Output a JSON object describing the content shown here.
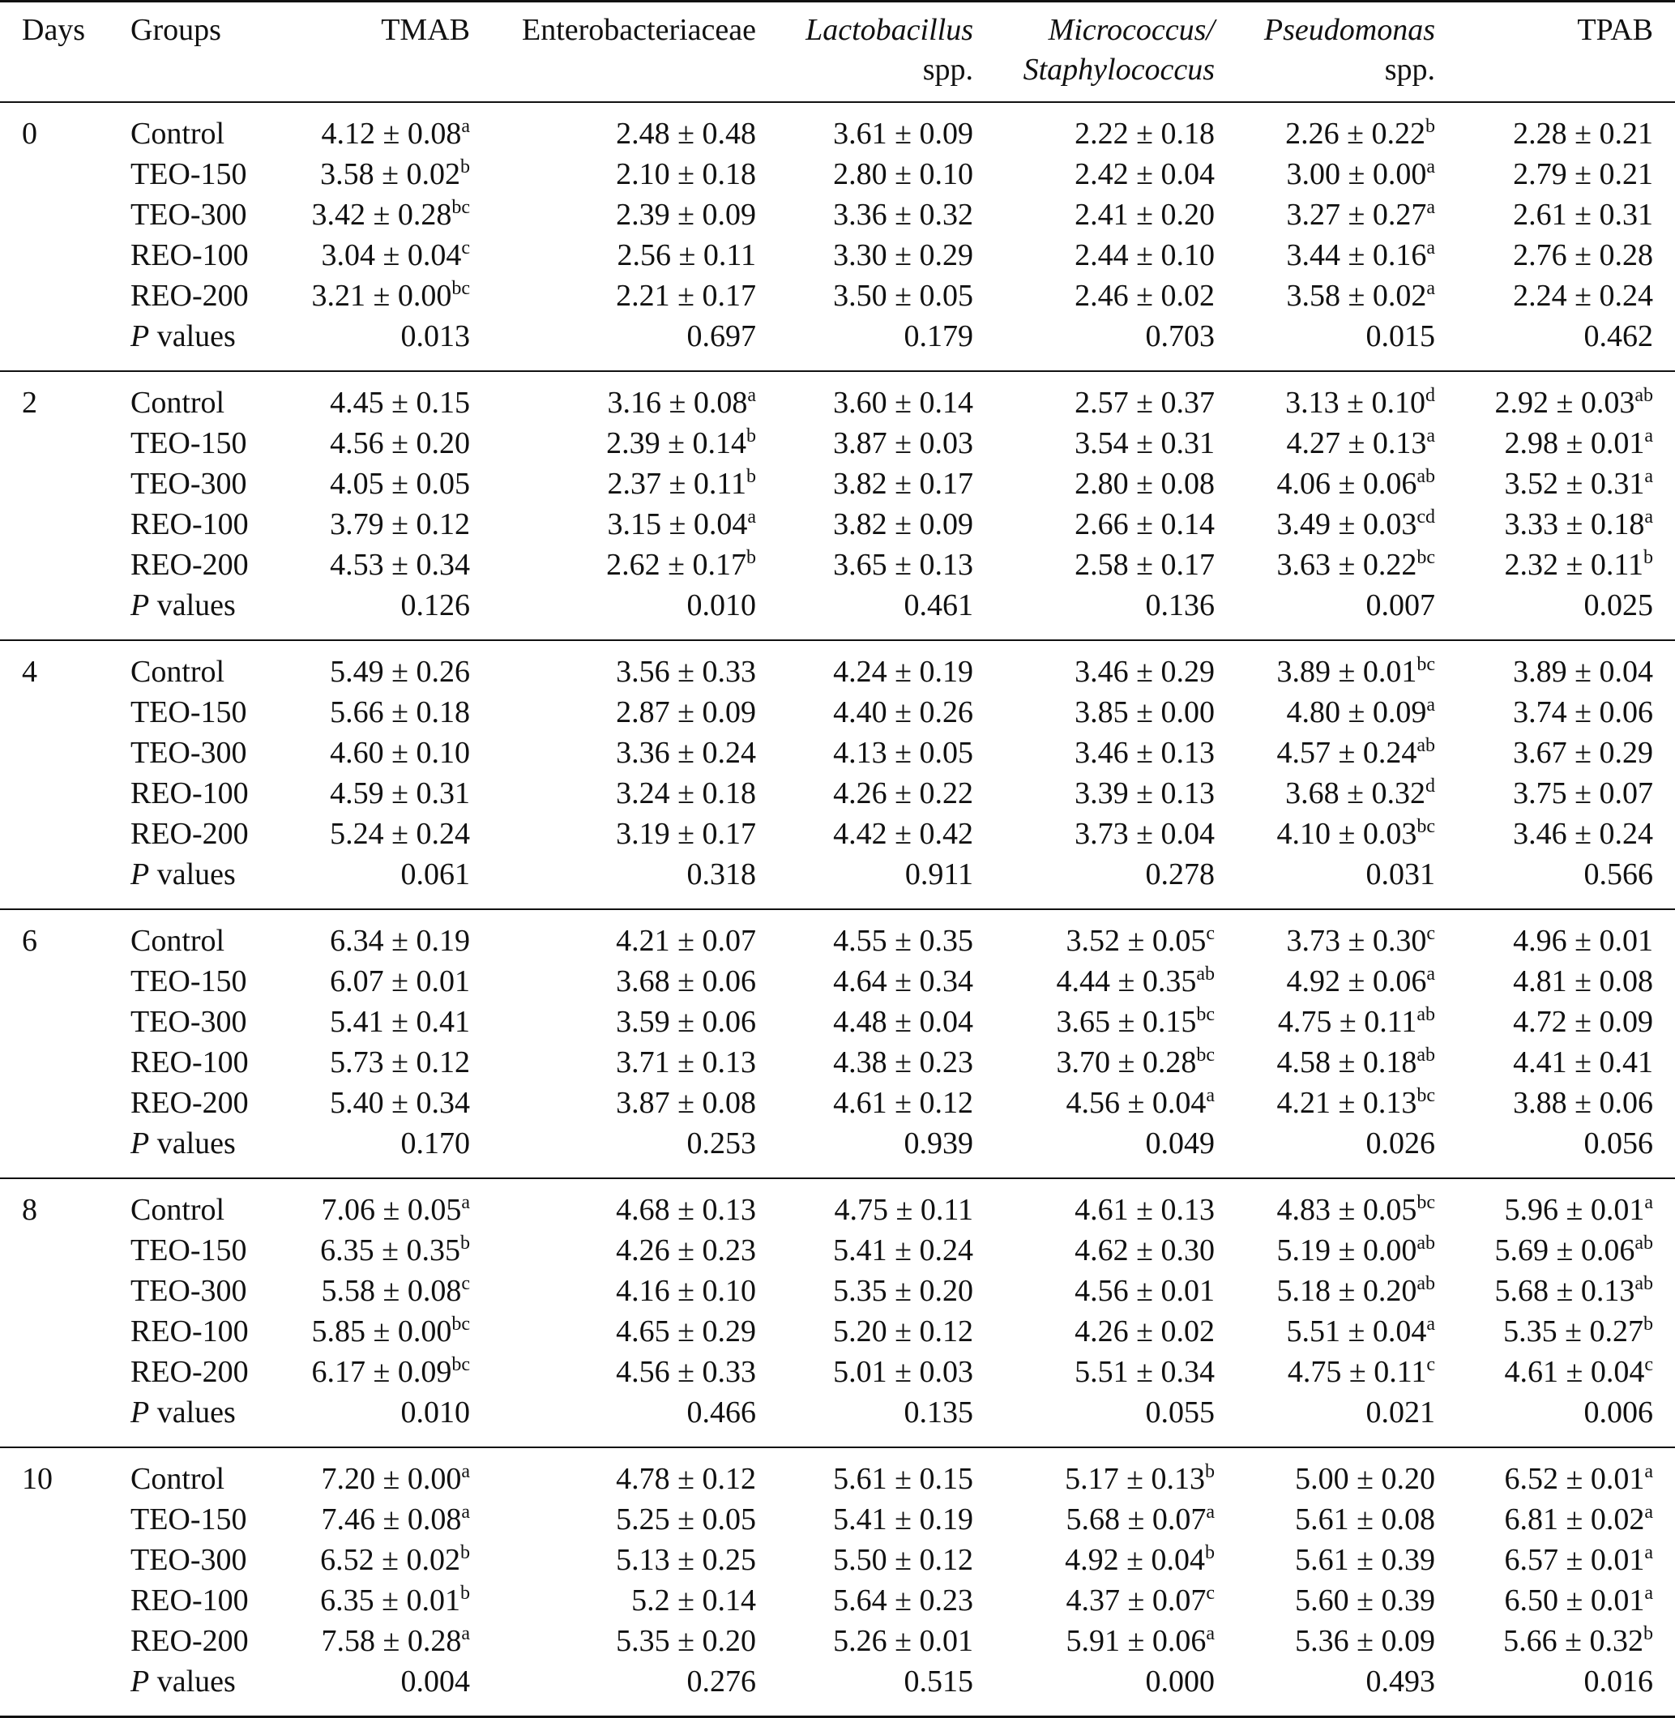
{
  "table": {
    "headers": {
      "days": "Days",
      "groups": "Groups",
      "tmab": "TMAB",
      "entero": "Enterobacteriaceae",
      "lacto_1": "Lactobacillus",
      "lacto_2": "spp.",
      "micro_1": "Micrococcus/",
      "micro_2": "Staphylococcus",
      "pseudo_1": "Pseudomonas",
      "pseudo_2": "spp.",
      "tpab": "TPAB"
    },
    "p_label_italic": "P",
    "p_label_rest": " values",
    "blocks": [
      {
        "day": "0",
        "rows": [
          {
            "group": "Control",
            "cells": [
              [
                "4.12 ± 0.08",
                "a"
              ],
              [
                "2.48 ± 0.48",
                ""
              ],
              [
                "3.61 ± 0.09",
                ""
              ],
              [
                "2.22 ± 0.18",
                ""
              ],
              [
                "2.26 ± 0.22",
                "b"
              ],
              [
                "2.28 ± 0.21",
                ""
              ]
            ]
          },
          {
            "group": "TEO-150",
            "cells": [
              [
                "3.58 ± 0.02",
                "b"
              ],
              [
                "2.10 ± 0.18",
                ""
              ],
              [
                "2.80 ± 0.10",
                ""
              ],
              [
                "2.42 ± 0.04",
                ""
              ],
              [
                "3.00 ± 0.00",
                "a"
              ],
              [
                "2.79 ± 0.21",
                ""
              ]
            ]
          },
          {
            "group": "TEO-300",
            "cells": [
              [
                "3.42 ± 0.28",
                "bc"
              ],
              [
                "2.39 ± 0.09",
                ""
              ],
              [
                "3.36 ± 0.32",
                ""
              ],
              [
                "2.41 ± 0.20",
                ""
              ],
              [
                "3.27 ± 0.27",
                "a"
              ],
              [
                "2.61 ± 0.31",
                ""
              ]
            ]
          },
          {
            "group": "REO-100",
            "cells": [
              [
                "3.04 ± 0.04",
                "c"
              ],
              [
                "2.56 ± 0.11",
                ""
              ],
              [
                "3.30 ± 0.29",
                ""
              ],
              [
                "2.44 ± 0.10",
                ""
              ],
              [
                "3.44 ± 0.16",
                "a"
              ],
              [
                "2.76 ± 0.28",
                ""
              ]
            ]
          },
          {
            "group": "REO-200",
            "cells": [
              [
                "3.21 ± 0.00",
                "bc"
              ],
              [
                "2.21 ± 0.17",
                ""
              ],
              [
                "3.50 ± 0.05",
                ""
              ],
              [
                "2.46 ± 0.02",
                ""
              ],
              [
                "3.58 ± 0.02",
                "a"
              ],
              [
                "2.24 ± 0.24",
                ""
              ]
            ]
          }
        ],
        "p_values": [
          "0.013",
          "0.697",
          "0.179",
          "0.703",
          "0.015",
          "0.462"
        ]
      },
      {
        "day": "2",
        "rows": [
          {
            "group": "Control",
            "cells": [
              [
                "4.45 ± 0.15",
                ""
              ],
              [
                "3.16 ± 0.08",
                "a"
              ],
              [
                "3.60 ± 0.14",
                ""
              ],
              [
                "2.57 ± 0.37",
                ""
              ],
              [
                "3.13 ± 0.10",
                "d"
              ],
              [
                "2.92 ± 0.03",
                "ab"
              ]
            ]
          },
          {
            "group": "TEO-150",
            "cells": [
              [
                "4.56 ± 0.20",
                ""
              ],
              [
                "2.39 ± 0.14",
                "b"
              ],
              [
                "3.87 ± 0.03",
                ""
              ],
              [
                "3.54 ± 0.31",
                ""
              ],
              [
                "4.27 ± 0.13",
                "a"
              ],
              [
                "2.98 ± 0.01",
                "a"
              ]
            ]
          },
          {
            "group": "TEO-300",
            "cells": [
              [
                "4.05 ± 0.05",
                ""
              ],
              [
                "2.37 ± 0.11",
                "b"
              ],
              [
                "3.82 ± 0.17",
                ""
              ],
              [
                "2.80 ± 0.08",
                ""
              ],
              [
                "4.06 ± 0.06",
                "ab"
              ],
              [
                "3.52 ± 0.31",
                "a"
              ]
            ]
          },
          {
            "group": "REO-100",
            "cells": [
              [
                "3.79 ± 0.12",
                ""
              ],
              [
                "3.15 ± 0.04",
                "a"
              ],
              [
                "3.82 ± 0.09",
                ""
              ],
              [
                "2.66 ± 0.14",
                ""
              ],
              [
                "3.49 ± 0.03",
                "cd"
              ],
              [
                "3.33 ± 0.18",
                "a"
              ]
            ]
          },
          {
            "group": "REO-200",
            "cells": [
              [
                "4.53 ± 0.34",
                ""
              ],
              [
                "2.62 ± 0.17",
                "b"
              ],
              [
                "3.65 ± 0.13",
                ""
              ],
              [
                "2.58 ± 0.17",
                ""
              ],
              [
                "3.63 ± 0.22",
                "bc"
              ],
              [
                "2.32 ± 0.11",
                "b"
              ]
            ]
          }
        ],
        "p_values": [
          "0.126",
          "0.010",
          "0.461",
          "0.136",
          "0.007",
          "0.025"
        ]
      },
      {
        "day": "4",
        "rows": [
          {
            "group": "Control",
            "cells": [
              [
                "5.49 ± 0.26",
                ""
              ],
              [
                "3.56 ± 0.33",
                ""
              ],
              [
                "4.24 ± 0.19",
                ""
              ],
              [
                "3.46 ± 0.29",
                ""
              ],
              [
                "3.89 ± 0.01",
                "bc"
              ],
              [
                "3.89 ± 0.04",
                ""
              ]
            ]
          },
          {
            "group": "TEO-150",
            "cells": [
              [
                "5.66 ± 0.18",
                ""
              ],
              [
                "2.87 ± 0.09",
                ""
              ],
              [
                "4.40 ± 0.26",
                ""
              ],
              [
                "3.85 ± 0.00",
                ""
              ],
              [
                "4.80 ± 0.09",
                "a"
              ],
              [
                "3.74 ± 0.06",
                ""
              ]
            ]
          },
          {
            "group": "TEO-300",
            "cells": [
              [
                "4.60 ± 0.10",
                ""
              ],
              [
                "3.36 ± 0.24",
                ""
              ],
              [
                "4.13 ± 0.05",
                ""
              ],
              [
                "3.46 ± 0.13",
                ""
              ],
              [
                "4.57 ± 0.24",
                "ab"
              ],
              [
                "3.67 ± 0.29",
                ""
              ]
            ]
          },
          {
            "group": "REO-100",
            "cells": [
              [
                "4.59 ± 0.31",
                ""
              ],
              [
                "3.24 ± 0.18",
                ""
              ],
              [
                "4.26 ± 0.22",
                ""
              ],
              [
                "3.39 ± 0.13",
                ""
              ],
              [
                "3.68 ± 0.32",
                "d"
              ],
              [
                "3.75 ± 0.07",
                ""
              ]
            ]
          },
          {
            "group": "REO-200",
            "cells": [
              [
                "5.24 ± 0.24",
                ""
              ],
              [
                "3.19 ± 0.17",
                ""
              ],
              [
                "4.42 ± 0.42",
                ""
              ],
              [
                "3.73 ± 0.04",
                ""
              ],
              [
                "4.10 ± 0.03",
                "bc"
              ],
              [
                "3.46 ± 0.24",
                ""
              ]
            ]
          }
        ],
        "p_values": [
          "0.061",
          "0.318",
          "0.911",
          "0.278",
          "0.031",
          "0.566"
        ]
      },
      {
        "day": "6",
        "rows": [
          {
            "group": "Control",
            "cells": [
              [
                "6.34 ± 0.19",
                ""
              ],
              [
                "4.21 ± 0.07",
                ""
              ],
              [
                "4.55 ± 0.35",
                ""
              ],
              [
                "3.52 ± 0.05",
                "c"
              ],
              [
                "3.73 ± 0.30",
                "c"
              ],
              [
                "4.96 ± 0.01",
                ""
              ]
            ]
          },
          {
            "group": "TEO-150",
            "cells": [
              [
                "6.07 ± 0.01",
                ""
              ],
              [
                "3.68 ± 0.06",
                ""
              ],
              [
                "4.64 ± 0.34",
                ""
              ],
              [
                "4.44 ± 0.35",
                "ab"
              ],
              [
                "4.92 ± 0.06",
                "a"
              ],
              [
                "4.81 ± 0.08",
                ""
              ]
            ]
          },
          {
            "group": "TEO-300",
            "cells": [
              [
                "5.41 ± 0.41",
                ""
              ],
              [
                "3.59 ± 0.06",
                ""
              ],
              [
                "4.48 ± 0.04",
                ""
              ],
              [
                "3.65 ± 0.15",
                "bc"
              ],
              [
                "4.75 ± 0.11",
                "ab"
              ],
              [
                "4.72 ± 0.09",
                ""
              ]
            ]
          },
          {
            "group": "REO-100",
            "cells": [
              [
                "5.73 ± 0.12",
                ""
              ],
              [
                "3.71 ± 0.13",
                ""
              ],
              [
                "4.38 ± 0.23",
                ""
              ],
              [
                "3.70 ± 0.28",
                "bc"
              ],
              [
                "4.58 ± 0.18",
                "ab"
              ],
              [
                "4.41 ± 0.41",
                ""
              ]
            ]
          },
          {
            "group": "REO-200",
            "cells": [
              [
                "5.40 ± 0.34",
                ""
              ],
              [
                "3.87 ± 0.08",
                ""
              ],
              [
                "4.61 ± 0.12",
                ""
              ],
              [
                "4.56 ± 0.04",
                "a"
              ],
              [
                "4.21 ± 0.13",
                "bc"
              ],
              [
                "3.88 ± 0.06",
                ""
              ]
            ]
          }
        ],
        "p_values": [
          "0.170",
          "0.253",
          "0.939",
          "0.049",
          "0.026",
          "0.056"
        ]
      },
      {
        "day": "8",
        "rows": [
          {
            "group": "Control",
            "cells": [
              [
                "7.06 ± 0.05",
                "a"
              ],
              [
                "4.68 ± 0.13",
                ""
              ],
              [
                "4.75 ± 0.11",
                ""
              ],
              [
                "4.61 ± 0.13",
                ""
              ],
              [
                "4.83 ± 0.05",
                "bc"
              ],
              [
                "5.96 ± 0.01",
                "a"
              ]
            ]
          },
          {
            "group": "TEO-150",
            "cells": [
              [
                "6.35 ± 0.35",
                "b"
              ],
              [
                "4.26 ± 0.23",
                ""
              ],
              [
                "5.41 ± 0.24",
                ""
              ],
              [
                "4.62 ± 0.30",
                ""
              ],
              [
                "5.19 ± 0.00",
                "ab"
              ],
              [
                "5.69 ± 0.06",
                "ab"
              ]
            ]
          },
          {
            "group": "TEO-300",
            "cells": [
              [
                "5.58 ± 0.08",
                "c"
              ],
              [
                "4.16 ± 0.10",
                ""
              ],
              [
                "5.35 ± 0.20",
                ""
              ],
              [
                "4.56 ± 0.01",
                ""
              ],
              [
                "5.18 ± 0.20",
                "ab"
              ],
              [
                "5.68 ± 0.13",
                "ab"
              ]
            ]
          },
          {
            "group": "REO-100",
            "cells": [
              [
                "5.85 ± 0.00",
                "bc"
              ],
              [
                "4.65 ± 0.29",
                ""
              ],
              [
                "5.20 ± 0.12",
                ""
              ],
              [
                "4.26 ± 0.02",
                ""
              ],
              [
                "5.51 ± 0.04",
                "a"
              ],
              [
                "5.35 ± 0.27",
                "b"
              ]
            ]
          },
          {
            "group": "REO-200",
            "cells": [
              [
                "6.17 ± 0.09",
                "bc"
              ],
              [
                "4.56 ± 0.33",
                ""
              ],
              [
                "5.01 ± 0.03",
                ""
              ],
              [
                "5.51 ± 0.34",
                ""
              ],
              [
                "4.75 ± 0.11",
                "c"
              ],
              [
                "4.61 ± 0.04",
                "c"
              ]
            ]
          }
        ],
        "p_values": [
          "0.010",
          "0.466",
          "0.135",
          "0.055",
          "0.021",
          "0.006"
        ]
      },
      {
        "day": "10",
        "rows": [
          {
            "group": "Control",
            "cells": [
              [
                "7.20 ± 0.00",
                "a"
              ],
              [
                "4.78 ± 0.12",
                ""
              ],
              [
                "5.61 ± 0.15",
                ""
              ],
              [
                "5.17 ± 0.13",
                "b"
              ],
              [
                "5.00 ± 0.20",
                ""
              ],
              [
                "6.52 ± 0.01",
                "a"
              ]
            ]
          },
          {
            "group": "TEO-150",
            "cells": [
              [
                "7.46 ± 0.08",
                "a"
              ],
              [
                "5.25 ± 0.05",
                ""
              ],
              [
                "5.41 ± 0.19",
                ""
              ],
              [
                "5.68 ± 0.07",
                "a"
              ],
              [
                "5.61 ± 0.08",
                ""
              ],
              [
                "6.81 ± 0.02",
                "a"
              ]
            ]
          },
          {
            "group": "TEO-300",
            "cells": [
              [
                "6.52 ± 0.02",
                "b"
              ],
              [
                "5.13 ± 0.25",
                ""
              ],
              [
                "5.50 ± 0.12",
                ""
              ],
              [
                "4.92 ± 0.04",
                "b"
              ],
              [
                "5.61 ± 0.39",
                ""
              ],
              [
                "6.57 ± 0.01",
                "a"
              ]
            ]
          },
          {
            "group": "REO-100",
            "cells": [
              [
                "6.35 ± 0.01",
                "b"
              ],
              [
                "5.2 ± 0.14",
                ""
              ],
              [
                "5.64 ± 0.23",
                ""
              ],
              [
                "4.37 ± 0.07",
                "c"
              ],
              [
                "5.60 ± 0.39",
                ""
              ],
              [
                "6.50 ± 0.01",
                "a"
              ]
            ]
          },
          {
            "group": "REO-200",
            "cells": [
              [
                "7.58 ± 0.28",
                "a"
              ],
              [
                "5.35 ± 0.20",
                ""
              ],
              [
                "5.26 ± 0.01",
                ""
              ],
              [
                "5.91 ± 0.06",
                "a"
              ],
              [
                "5.36 ± 0.09",
                ""
              ],
              [
                "5.66 ± 0.32",
                "b"
              ]
            ]
          }
        ],
        "p_values": [
          "0.004",
          "0.276",
          "0.515",
          "0.000",
          "0.493",
          "0.016"
        ]
      }
    ]
  }
}
